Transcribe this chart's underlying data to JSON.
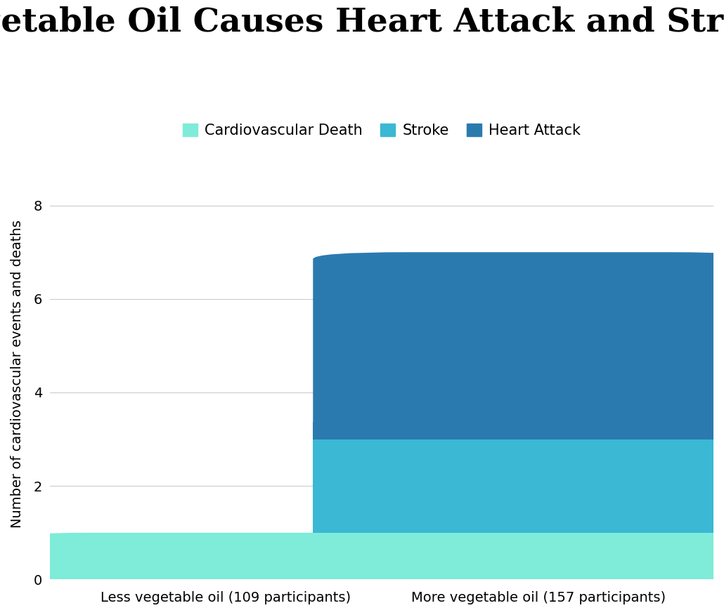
{
  "title": "Vegetable Oil Causes Heart Attack and Stroke",
  "ylabel": "Number of cardiovascular events and deaths",
  "categories": [
    "Less vegetable oil (109 participants)",
    "More vegetable oil (157 participants)"
  ],
  "cardiovascular_death": [
    1,
    1
  ],
  "stroke": [
    0,
    2
  ],
  "heart_attack": [
    0,
    4
  ],
  "color_cardio_death": "#7EECD8",
  "color_stroke": "#3BB8D4",
  "color_heart_attack": "#2B7AAF",
  "ylim": [
    0,
    8.8
  ],
  "yticks": [
    0,
    2,
    4,
    6,
    8
  ],
  "background_color": "#FFFFFF",
  "title_fontsize": 34,
  "legend_fontsize": 15,
  "axis_fontsize": 14,
  "tick_fontsize": 14,
  "bar_width": 0.72,
  "bar_positions": [
    0.28,
    0.78
  ],
  "xlim": [
    0.0,
    1.06
  ]
}
